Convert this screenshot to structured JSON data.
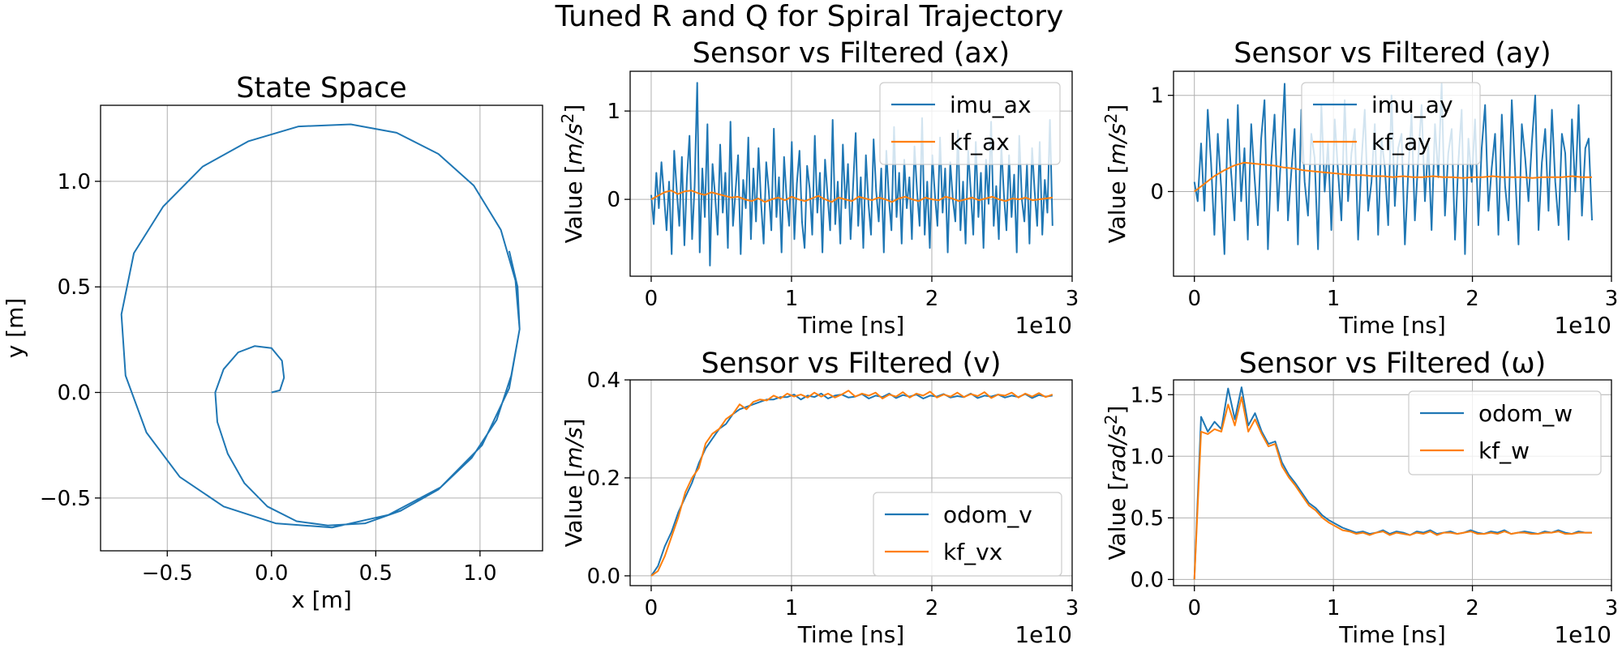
{
  "figure": {
    "title": "Tuned R and Q for Spiral Trajectory",
    "colors": {
      "blue": "#1f77b4",
      "orange": "#ff7f0e"
    }
  },
  "chart_data": [
    {
      "id": "state-space",
      "type": "line",
      "title": "State Space",
      "xlabel": "x [m]",
      "ylabel": "y [m]",
      "xlim": [
        -0.82,
        1.3
      ],
      "ylim": [
        -0.75,
        1.36
      ],
      "xticks": [
        -0.5,
        0.0,
        0.5,
        1.0
      ],
      "xtick_labels": [
        "−0.5",
        "0.0",
        "0.5",
        "1.0"
      ],
      "yticks": [
        -0.5,
        0.0,
        0.5,
        1.0
      ],
      "ytick_labels": [
        "−0.5",
        "0.0",
        "0.5",
        "1.0"
      ],
      "grid": true,
      "series": [
        {
          "name": "trajectory",
          "color": "#1f77b4",
          "points": [
            [
              0.0,
              0.0
            ],
            [
              0.04,
              0.01
            ],
            [
              0.06,
              0.07
            ],
            [
              0.05,
              0.15
            ],
            [
              0.0,
              0.21
            ],
            [
              -0.08,
              0.22
            ],
            [
              -0.16,
              0.19
            ],
            [
              -0.23,
              0.11
            ],
            [
              -0.27,
              0.0
            ],
            [
              -0.26,
              -0.14
            ],
            [
              -0.21,
              -0.29
            ],
            [
              -0.13,
              -0.43
            ],
            [
              -0.02,
              -0.54
            ],
            [
              0.12,
              -0.61
            ],
            [
              0.27,
              -0.63
            ],
            [
              0.45,
              -0.62
            ],
            [
              0.62,
              -0.56
            ],
            [
              0.8,
              -0.46
            ],
            [
              0.96,
              -0.31
            ],
            [
              1.08,
              -0.13
            ],
            [
              1.15,
              0.08
            ],
            [
              1.19,
              0.3
            ],
            [
              1.17,
              0.53
            ],
            [
              1.1,
              0.77
            ],
            [
              0.97,
              0.98
            ],
            [
              0.8,
              1.13
            ],
            [
              0.6,
              1.23
            ],
            [
              0.38,
              1.27
            ],
            [
              0.13,
              1.26
            ],
            [
              -0.11,
              1.19
            ],
            [
              -0.33,
              1.07
            ],
            [
              -0.52,
              0.88
            ],
            [
              -0.66,
              0.66
            ],
            [
              -0.72,
              0.37
            ],
            [
              -0.7,
              0.08
            ],
            [
              -0.6,
              -0.19
            ],
            [
              -0.44,
              -0.4
            ],
            [
              -0.23,
              -0.54
            ],
            [
              0.02,
              -0.62
            ],
            [
              0.29,
              -0.64
            ],
            [
              0.56,
              -0.58
            ],
            [
              0.81,
              -0.45
            ],
            [
              1.01,
              -0.25
            ],
            [
              1.14,
              0.02
            ],
            [
              1.19,
              0.3
            ],
            [
              1.18,
              0.5
            ],
            [
              1.14,
              0.67
            ]
          ]
        }
      ]
    },
    {
      "id": "ax",
      "type": "line",
      "title": "Sensor vs Filtered (ax)",
      "xlabel": "Time [ns]",
      "ylabel": "Value [m/s²]",
      "ylabel_parts": [
        "Value [",
        "m/s",
        "2",
        "]"
      ],
      "offset_label": "1e10",
      "xlim": [
        -0.15,
        3.0
      ],
      "ylim": [
        -0.87,
        1.45
      ],
      "xticks": [
        0,
        1,
        2,
        3
      ],
      "xtick_labels": [
        "0",
        "1",
        "2",
        "3"
      ],
      "yticks": [
        0,
        1
      ],
      "ytick_labels": [
        "0",
        "1"
      ],
      "grid": true,
      "legend": "top-right",
      "series": [
        {
          "name": "imu_ax",
          "color": "#1f77b4",
          "x_range": [
            0,
            2.86
          ],
          "values": [
            0.05,
            -0.28,
            0.3,
            -0.1,
            0.42,
            0.05,
            -0.35,
            0.2,
            -0.62,
            0.55,
            0.1,
            -0.3,
            0.48,
            -0.52,
            0.25,
            0.72,
            -0.45,
            0.15,
            1.32,
            -0.6,
            0.35,
            -0.2,
            0.85,
            -0.75,
            0.4,
            0.05,
            -0.4,
            0.62,
            -0.15,
            0.3,
            -0.55,
            0.88,
            -0.3,
            0.1,
            0.5,
            -0.62,
            0.22,
            -0.1,
            0.7,
            -0.45,
            0.35,
            -0.25,
            0.58,
            -0.05,
            -0.5,
            0.42,
            0.1,
            -0.35,
            0.8,
            -0.2,
            0.25,
            -0.6,
            0.48,
            0.0,
            -0.3,
            0.65,
            -0.45,
            0.18,
            0.55,
            -0.25,
            -0.55,
            0.38,
            0.12,
            -0.4,
            0.72,
            -0.15,
            0.3,
            -0.6,
            0.45,
            0.05,
            -0.35,
            0.9,
            -0.28,
            0.2,
            -0.5,
            0.62,
            -0.1,
            0.4,
            -0.45,
            0.15,
            0.75,
            -0.3,
            0.25,
            -0.55,
            0.5,
            -0.05,
            -0.4,
            0.68,
            0.1,
            -0.25,
            0.35,
            -0.6,
            0.55,
            0.0,
            -0.35,
            0.82,
            -0.2,
            0.3,
            -0.5,
            0.45,
            -0.1,
            0.25,
            -0.45,
            0.6,
            0.1,
            -0.3,
            0.92,
            -0.4,
            0.2,
            -0.55,
            0.5,
            0.05,
            -0.3,
            0.7,
            -0.15,
            0.35,
            -0.6,
            0.42,
            0.0,
            -0.25,
            0.78,
            -0.35,
            0.2,
            -0.5,
            0.55,
            0.1,
            -0.4,
            0.65,
            -0.2,
            0.3,
            -0.55,
            0.45,
            -0.05,
            0.88,
            -0.3,
            0.15,
            -0.45,
            0.6,
            0.05,
            -0.35,
            0.5,
            -0.2,
            0.28,
            -0.6,
            0.72,
            0.0,
            -0.25,
            0.4,
            -0.5,
            0.58,
            0.1,
            -0.3,
            0.65,
            -0.4,
            0.22,
            -0.15,
            0.9,
            -0.3
          ]
        },
        {
          "name": "kf_ax",
          "color": "#ff7f0e",
          "x_range": [
            0,
            2.86
          ],
          "values": [
            0.0,
            0.04,
            0.08,
            0.1,
            0.06,
            0.09,
            0.1,
            0.07,
            0.05,
            0.08,
            0.06,
            0.04,
            0.02,
            0.03,
            0.0,
            -0.02,
            0.01,
            -0.03,
            0.0,
            0.02,
            -0.01,
            0.03,
            0.0,
            -0.02,
            0.01,
            0.04,
            0.0,
            -0.03,
            0.02,
            0.0,
            -0.02,
            0.03,
            0.01,
            -0.01,
            0.02,
            0.0,
            -0.03,
            0.01,
            0.03,
            0.0,
            -0.02,
            0.02,
            0.0,
            -0.01,
            0.03,
            0.01,
            -0.02,
            0.0,
            0.02,
            -0.01,
            0.01,
            0.03,
            0.0,
            -0.02,
            0.01,
            0.0,
            0.02,
            -0.01,
            0.0,
            0.01,
            0.02
          ]
        }
      ]
    },
    {
      "id": "ay",
      "type": "line",
      "title": "Sensor vs Filtered (ay)",
      "xlabel": "Time [ns]",
      "ylabel": "Value [m/s²]",
      "ylabel_parts": [
        "Value [",
        "m/s",
        "2",
        "]"
      ],
      "offset_label": "1e10",
      "xlim": [
        -0.15,
        3.0
      ],
      "ylim": [
        -0.88,
        1.25
      ],
      "xticks": [
        0,
        1,
        2,
        3
      ],
      "xtick_labels": [
        "0",
        "1",
        "2",
        "3"
      ],
      "yticks": [
        0,
        1
      ],
      "ytick_labels": [
        "0",
        "1"
      ],
      "grid": true,
      "legend": "top-center",
      "series": [
        {
          "name": "imu_ay",
          "color": "#1f77b4",
          "x_range": [
            0,
            2.86
          ],
          "values": [
            0.1,
            -0.1,
            0.5,
            -0.2,
            0.85,
            0.3,
            -0.45,
            0.6,
            0.05,
            -0.65,
            0.75,
            0.2,
            -0.3,
            0.9,
            -0.1,
            0.45,
            -0.5,
            0.7,
            0.15,
            -0.35,
            0.55,
            0.95,
            -0.6,
            0.3,
            0.8,
            -0.2,
            0.4,
            1.12,
            -0.3,
            0.2,
            0.65,
            -0.55,
            0.85,
            0.1,
            -0.25,
            0.6,
            0.35,
            -0.6,
            0.9,
            0.0,
            0.5,
            -0.4,
            0.75,
            0.2,
            -0.3,
            0.95,
            -0.1,
            0.4,
            0.65,
            -0.5,
            0.3,
            0.85,
            -0.2,
            0.1,
            0.7,
            -0.45,
            0.55,
            0.25,
            -0.35,
            1.0,
            -0.15,
            0.45,
            0.6,
            -0.55,
            0.2,
            0.8,
            -0.3,
            0.35,
            0.9,
            -0.1,
            0.5,
            -0.4,
            0.7,
            0.15,
            1.12,
            -0.25,
            0.4,
            0.65,
            -0.5,
            0.3,
            0.85,
            -0.65,
            0.55,
            0.1,
            0.75,
            -0.35,
            0.45,
            0.9,
            -0.2,
            0.25,
            0.6,
            -0.45,
            0.8,
            0.05,
            -0.3,
            0.95,
            0.2,
            -0.55,
            0.7,
            0.35,
            -0.1,
            0.5,
            1.0,
            -0.4,
            0.3,
            0.65,
            -0.2,
            0.85,
            0.1,
            -0.35,
            0.6,
            0.4,
            -0.5,
            0.75,
            0.0,
            0.9,
            -0.25,
            0.45,
            0.55,
            -0.3
          ]
        },
        {
          "name": "kf_ay",
          "color": "#ff7f0e",
          "x_range": [
            0,
            2.86
          ],
          "values": [
            0.0,
            0.08,
            0.16,
            0.22,
            0.27,
            0.3,
            0.29,
            0.28,
            0.27,
            0.25,
            0.24,
            0.22,
            0.21,
            0.2,
            0.19,
            0.18,
            0.17,
            0.17,
            0.16,
            0.16,
            0.15,
            0.16,
            0.15,
            0.15,
            0.16,
            0.15,
            0.15,
            0.14,
            0.15,
            0.15,
            0.16,
            0.15,
            0.15,
            0.15,
            0.14,
            0.15,
            0.15,
            0.15,
            0.16,
            0.15,
            0.15
          ]
        }
      ]
    },
    {
      "id": "v",
      "type": "line",
      "title": "Sensor vs Filtered (v)",
      "xlabel": "Time [ns]",
      "ylabel": "Value [m/s]",
      "ylabel_parts": [
        "Value [",
        "m/s",
        "",
        "]"
      ],
      "offset_label": "1e10",
      "xlim": [
        -0.15,
        3.0
      ],
      "ylim": [
        -0.02,
        0.4
      ],
      "xticks": [
        0,
        1,
        2,
        3
      ],
      "xtick_labels": [
        "0",
        "1",
        "2",
        "3"
      ],
      "yticks": [
        0.0,
        0.2,
        0.4
      ],
      "ytick_labels": [
        "0.0",
        "0.2",
        "0.4"
      ],
      "grid": true,
      "legend": "bottom-right",
      "series": [
        {
          "name": "odom_v",
          "color": "#1f77b4",
          "x_range": [
            0,
            2.86
          ],
          "values": [
            0.0,
            0.02,
            0.06,
            0.09,
            0.13,
            0.16,
            0.19,
            0.23,
            0.26,
            0.28,
            0.3,
            0.31,
            0.33,
            0.34,
            0.345,
            0.35,
            0.355,
            0.36,
            0.36,
            0.365,
            0.365,
            0.37,
            0.36,
            0.368,
            0.365,
            0.372,
            0.362,
            0.368,
            0.37,
            0.364,
            0.366,
            0.371,
            0.362,
            0.368,
            0.365,
            0.372,
            0.363,
            0.369,
            0.366,
            0.37,
            0.362,
            0.368,
            0.366,
            0.371,
            0.364,
            0.367,
            0.365,
            0.372,
            0.363,
            0.368,
            0.366,
            0.37,
            0.364,
            0.368,
            0.365,
            0.371,
            0.363,
            0.369,
            0.366,
            0.368
          ]
        },
        {
          "name": "kf_vx",
          "color": "#ff7f0e",
          "x_range": [
            0,
            2.86
          ],
          "values": [
            0.0,
            0.01,
            0.04,
            0.08,
            0.12,
            0.17,
            0.2,
            0.22,
            0.27,
            0.29,
            0.3,
            0.32,
            0.33,
            0.35,
            0.34,
            0.355,
            0.36,
            0.358,
            0.368,
            0.362,
            0.372,
            0.366,
            0.37,
            0.364,
            0.374,
            0.366,
            0.372,
            0.364,
            0.37,
            0.378,
            0.366,
            0.372,
            0.368,
            0.374,
            0.362,
            0.37,
            0.366,
            0.375,
            0.364,
            0.372,
            0.368,
            0.376,
            0.364,
            0.37,
            0.366,
            0.374,
            0.365,
            0.371,
            0.367,
            0.375,
            0.363,
            0.37,
            0.368,
            0.374,
            0.364,
            0.372,
            0.366,
            0.373,
            0.365,
            0.37
          ]
        }
      ]
    },
    {
      "id": "w",
      "type": "line",
      "title": "Sensor vs Filtered (ω)",
      "xlabel": "Time [ns]",
      "ylabel": "Value [rad/s²]",
      "ylabel_parts": [
        "Value [",
        "rad/s",
        "2",
        "]"
      ],
      "offset_label": "1e10",
      "xlim": [
        -0.15,
        3.0
      ],
      "ylim": [
        -0.05,
        1.62
      ],
      "xticks": [
        0,
        1,
        2,
        3
      ],
      "xtick_labels": [
        "0",
        "1",
        "2",
        "3"
      ],
      "yticks": [
        0.0,
        0.5,
        1.0,
        1.5
      ],
      "ytick_labels": [
        "0.0",
        "0.5",
        "1.0",
        "1.5"
      ],
      "grid": true,
      "legend": "top-right",
      "series": [
        {
          "name": "odom_w",
          "color": "#1f77b4",
          "x_range": [
            0,
            2.86
          ],
          "values": [
            0.0,
            1.32,
            1.2,
            1.28,
            1.22,
            1.55,
            1.3,
            1.56,
            1.25,
            1.35,
            1.2,
            1.1,
            1.12,
            0.95,
            0.85,
            0.78,
            0.7,
            0.62,
            0.58,
            0.52,
            0.48,
            0.45,
            0.42,
            0.4,
            0.38,
            0.39,
            0.37,
            0.38,
            0.4,
            0.37,
            0.39,
            0.38,
            0.36,
            0.39,
            0.38,
            0.4,
            0.37,
            0.38,
            0.39,
            0.37,
            0.38,
            0.4,
            0.38,
            0.37,
            0.39,
            0.38,
            0.4,
            0.37,
            0.38,
            0.39,
            0.38,
            0.37,
            0.39,
            0.38,
            0.4,
            0.38,
            0.37,
            0.39,
            0.38,
            0.38
          ]
        },
        {
          "name": "kf_w",
          "color": "#ff7f0e",
          "x_range": [
            0,
            2.86
          ],
          "values": [
            0.0,
            1.2,
            1.18,
            1.22,
            1.2,
            1.42,
            1.25,
            1.48,
            1.2,
            1.3,
            1.18,
            1.08,
            1.1,
            0.92,
            0.83,
            0.76,
            0.68,
            0.6,
            0.56,
            0.5,
            0.46,
            0.43,
            0.4,
            0.39,
            0.37,
            0.38,
            0.36,
            0.38,
            0.39,
            0.36,
            0.38,
            0.37,
            0.36,
            0.38,
            0.37,
            0.39,
            0.36,
            0.38,
            0.38,
            0.37,
            0.38,
            0.39,
            0.37,
            0.37,
            0.38,
            0.37,
            0.39,
            0.37,
            0.38,
            0.38,
            0.37,
            0.37,
            0.38,
            0.38,
            0.39,
            0.37,
            0.37,
            0.38,
            0.38,
            0.38
          ]
        }
      ]
    }
  ]
}
